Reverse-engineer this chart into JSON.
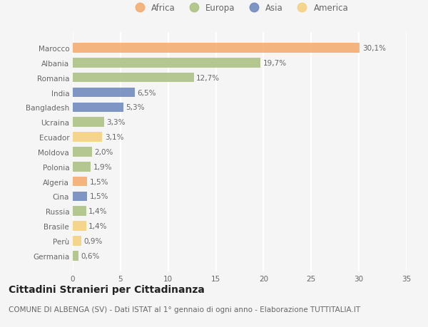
{
  "countries": [
    "Marocco",
    "Albania",
    "Romania",
    "India",
    "Bangladesh",
    "Ucraina",
    "Ecuador",
    "Moldova",
    "Polonia",
    "Algeria",
    "Cina",
    "Russia",
    "Brasile",
    "Perù",
    "Germania"
  ],
  "values": [
    30.1,
    19.7,
    12.7,
    6.5,
    5.3,
    3.3,
    3.1,
    2.0,
    1.9,
    1.5,
    1.5,
    1.4,
    1.4,
    0.9,
    0.6
  ],
  "continents": [
    "Africa",
    "Europa",
    "Europa",
    "Asia",
    "Asia",
    "Europa",
    "America",
    "Europa",
    "Europa",
    "Africa",
    "Asia",
    "Europa",
    "America",
    "America",
    "Europa"
  ],
  "labels": [
    "30,1%",
    "19,7%",
    "12,7%",
    "6,5%",
    "5,3%",
    "3,3%",
    "3,1%",
    "2,0%",
    "1,9%",
    "1,5%",
    "1,5%",
    "1,4%",
    "1,4%",
    "0,9%",
    "0,6%"
  ],
  "colors": {
    "Africa": "#F4A96B",
    "Europa": "#AABF7E",
    "Asia": "#6B85BD",
    "America": "#F5D07A"
  },
  "legend_order": [
    "Africa",
    "Europa",
    "Asia",
    "America"
  ],
  "xlim": [
    0,
    35
  ],
  "xticks": [
    0,
    5,
    10,
    15,
    20,
    25,
    30,
    35
  ],
  "title": "Cittadini Stranieri per Cittadinanza",
  "subtitle": "COMUNE DI ALBENGA (SV) - Dati ISTAT al 1° gennaio di ogni anno - Elaborazione TUTTITALIA.IT",
  "background_color": "#f5f5f5",
  "plot_background_color": "#f5f5f5",
  "grid_color": "#ffffff",
  "bar_height": 0.65,
  "title_fontsize": 10,
  "subtitle_fontsize": 7.5,
  "label_fontsize": 7.5,
  "tick_fontsize": 7.5,
  "legend_fontsize": 8.5
}
